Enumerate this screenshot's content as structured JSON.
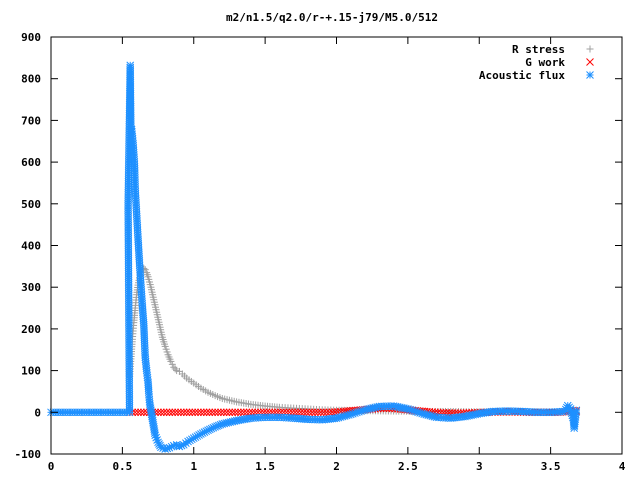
{
  "chart_data": {
    "type": "scatter",
    "title": "m2/n1.5/q2.0/r-+.15-j79/M5.0/512",
    "xlabel": "",
    "ylabel": "",
    "xlim": [
      0,
      4
    ],
    "ylim": [
      -100,
      900
    ],
    "x_ticks": [
      0,
      0.5,
      1,
      1.5,
      2,
      2.5,
      3,
      3.5,
      4
    ],
    "x_tick_labels": [
      "0",
      "0.5",
      "1",
      "1.5",
      "2",
      "2.5",
      "3",
      "3.5",
      "4"
    ],
    "y_ticks": [
      -100,
      0,
      100,
      200,
      300,
      400,
      500,
      600,
      700,
      800,
      900
    ],
    "y_tick_labels": [
      "-100",
      "0",
      "100",
      "200",
      "300",
      "400",
      "500",
      "600",
      "700",
      "800",
      "900"
    ],
    "grid": false,
    "legend_position": "top-right",
    "series": [
      {
        "name": "R stress",
        "marker": "plus",
        "color": "#a0a0a0",
        "points": [
          [
            0.55,
            80
          ],
          [
            0.56,
            128
          ],
          [
            0.57,
            175
          ],
          [
            0.58,
            215
          ],
          [
            0.59,
            250
          ],
          [
            0.6,
            282
          ],
          [
            0.61,
            305
          ],
          [
            0.62,
            322
          ],
          [
            0.63,
            335
          ],
          [
            0.64,
            343
          ],
          [
            0.65,
            345
          ],
          [
            0.66,
            342
          ],
          [
            0.67,
            335
          ],
          [
            0.68,
            325
          ],
          [
            0.7,
            300
          ],
          [
            0.72,
            270
          ],
          [
            0.74,
            240
          ],
          [
            0.76,
            210
          ],
          [
            0.78,
            180
          ],
          [
            0.8,
            158
          ],
          [
            0.82,
            138
          ],
          [
            0.84,
            122
          ],
          [
            0.86,
            108
          ],
          [
            0.88,
            100
          ],
          [
            0.9,
            98
          ],
          [
            0.92,
            92
          ],
          [
            0.95,
            82
          ],
          [
            1.0,
            70
          ],
          [
            1.05,
            58
          ],
          [
            1.1,
            48
          ],
          [
            1.15,
            40
          ],
          [
            1.2,
            33
          ],
          [
            1.3,
            25
          ],
          [
            1.4,
            19
          ],
          [
            1.5,
            15
          ],
          [
            1.6,
            12
          ],
          [
            1.7,
            10
          ],
          [
            1.8,
            8
          ],
          [
            1.9,
            6
          ],
          [
            2.0,
            5
          ],
          [
            2.2,
            4
          ],
          [
            2.4,
            3
          ],
          [
            2.6,
            2
          ],
          [
            2.8,
            2
          ],
          [
            3.0,
            1
          ],
          [
            3.2,
            1
          ],
          [
            3.4,
            1
          ],
          [
            3.6,
            1
          ],
          [
            3.68,
            0
          ]
        ]
      },
      {
        "name": "G work",
        "marker": "cross",
        "color": "#ff0000",
        "points": [
          [
            0.55,
            0
          ],
          [
            0.65,
            0
          ],
          [
            0.75,
            0
          ],
          [
            0.85,
            0
          ],
          [
            0.95,
            0
          ],
          [
            1.05,
            0
          ],
          [
            1.15,
            0
          ],
          [
            1.25,
            0
          ],
          [
            1.35,
            0
          ],
          [
            1.45,
            0
          ],
          [
            1.55,
            0
          ],
          [
            1.65,
            0
          ],
          [
            1.75,
            0
          ],
          [
            1.85,
            0
          ],
          [
            1.95,
            0
          ],
          [
            2.05,
            2
          ],
          [
            2.15,
            5
          ],
          [
            2.25,
            8
          ],
          [
            2.35,
            10
          ],
          [
            2.45,
            8
          ],
          [
            2.55,
            4
          ],
          [
            2.65,
            1
          ],
          [
            2.75,
            -1
          ],
          [
            2.85,
            -2
          ],
          [
            2.95,
            -1
          ],
          [
            3.05,
            0
          ],
          [
            3.15,
            1
          ],
          [
            3.25,
            1
          ],
          [
            3.35,
            0
          ],
          [
            3.45,
            0
          ],
          [
            3.55,
            0
          ],
          [
            3.62,
            2
          ],
          [
            3.65,
            4
          ],
          [
            3.68,
            3
          ]
        ]
      },
      {
        "name": "Acoustic flux",
        "marker": "star",
        "color": "#1e90ff",
        "points": [
          [
            0.0,
            0
          ],
          [
            0.05,
            0
          ],
          [
            0.1,
            0
          ],
          [
            0.15,
            0
          ],
          [
            0.2,
            0
          ],
          [
            0.25,
            0
          ],
          [
            0.3,
            0
          ],
          [
            0.35,
            0
          ],
          [
            0.4,
            0
          ],
          [
            0.45,
            0
          ],
          [
            0.5,
            0
          ],
          [
            0.55,
            0
          ],
          [
            0.54,
            495
          ],
          [
            0.555,
            832
          ],
          [
            0.56,
            670
          ],
          [
            0.565,
            678
          ],
          [
            0.575,
            645
          ],
          [
            0.585,
            595
          ],
          [
            0.59,
            535
          ],
          [
            0.6,
            475
          ],
          [
            0.61,
            415
          ],
          [
            0.62,
            358
          ],
          [
            0.63,
            305
          ],
          [
            0.64,
            255
          ],
          [
            0.65,
            210
          ],
          [
            0.655,
            170
          ],
          [
            0.66,
            132
          ],
          [
            0.67,
            100
          ],
          [
            0.68,
            72
          ],
          [
            0.685,
            48
          ],
          [
            0.69,
            25
          ],
          [
            0.7,
            5
          ],
          [
            0.71,
            -15
          ],
          [
            0.72,
            -35
          ],
          [
            0.73,
            -55
          ],
          [
            0.75,
            -72
          ],
          [
            0.77,
            -84
          ],
          [
            0.8,
            -88
          ],
          [
            0.83,
            -85
          ],
          [
            0.86,
            -80
          ],
          [
            0.88,
            -78
          ],
          [
            0.9,
            -82
          ],
          [
            0.93,
            -78
          ],
          [
            0.96,
            -70
          ],
          [
            1.0,
            -62
          ],
          [
            1.05,
            -52
          ],
          [
            1.1,
            -43
          ],
          [
            1.15,
            -35
          ],
          [
            1.2,
            -28
          ],
          [
            1.3,
            -20
          ],
          [
            1.4,
            -14
          ],
          [
            1.5,
            -12
          ],
          [
            1.6,
            -12
          ],
          [
            1.7,
            -14
          ],
          [
            1.8,
            -17
          ],
          [
            1.9,
            -18
          ],
          [
            2.0,
            -14
          ],
          [
            2.1,
            -5
          ],
          [
            2.2,
            6
          ],
          [
            2.3,
            14
          ],
          [
            2.4,
            15
          ],
          [
            2.5,
            8
          ],
          [
            2.6,
            -3
          ],
          [
            2.7,
            -12
          ],
          [
            2.8,
            -14
          ],
          [
            2.9,
            -10
          ],
          [
            3.0,
            -3
          ],
          [
            3.1,
            2
          ],
          [
            3.2,
            3
          ],
          [
            3.3,
            2
          ],
          [
            3.4,
            0
          ],
          [
            3.5,
            0
          ],
          [
            3.6,
            2
          ],
          [
            3.62,
            16
          ],
          [
            3.64,
            8
          ],
          [
            3.66,
            -18
          ],
          [
            3.665,
            -38
          ],
          [
            3.68,
            5
          ]
        ]
      }
    ]
  }
}
